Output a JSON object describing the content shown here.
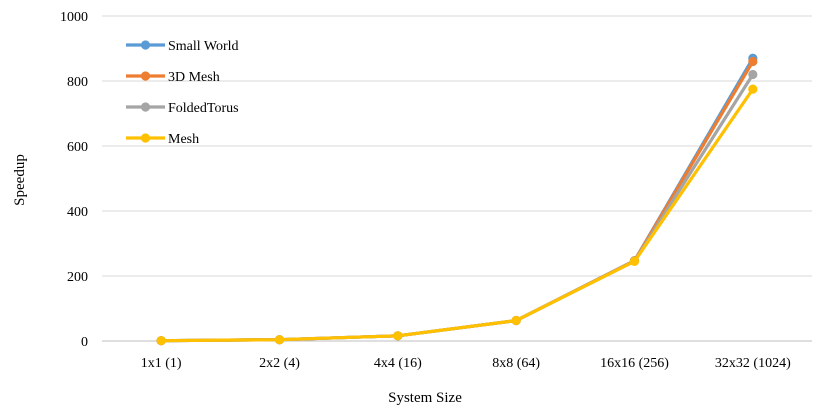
{
  "chart_data": {
    "type": "line",
    "title": "",
    "xlabel": "System Size",
    "ylabel": "Speedup",
    "categories": [
      "1x1 (1)",
      "2x2 (4)",
      "4x4 (16)",
      "8x8 (64)",
      "16x16 (256)",
      "32x32 (1024)"
    ],
    "ylim": [
      0,
      1000
    ],
    "yticks": [
      0,
      200,
      400,
      600,
      800,
      1000
    ],
    "grid": true,
    "legend_position": "top-left",
    "series": [
      {
        "name": "Small World",
        "color": "#5B9BD5",
        "values": [
          1,
          4,
          16,
          63,
          247,
          870
        ]
      },
      {
        "name": "3D Mesh",
        "color": "#ED7D31",
        "values": [
          1,
          4,
          16,
          63,
          247,
          860
        ]
      },
      {
        "name": "FoldedTorus",
        "color": "#A5A5A5",
        "values": [
          1,
          4,
          16,
          63,
          246,
          820
        ]
      },
      {
        "name": "Mesh",
        "color": "#FFC000",
        "values": [
          1,
          4,
          16,
          63,
          245,
          775
        ]
      }
    ]
  }
}
